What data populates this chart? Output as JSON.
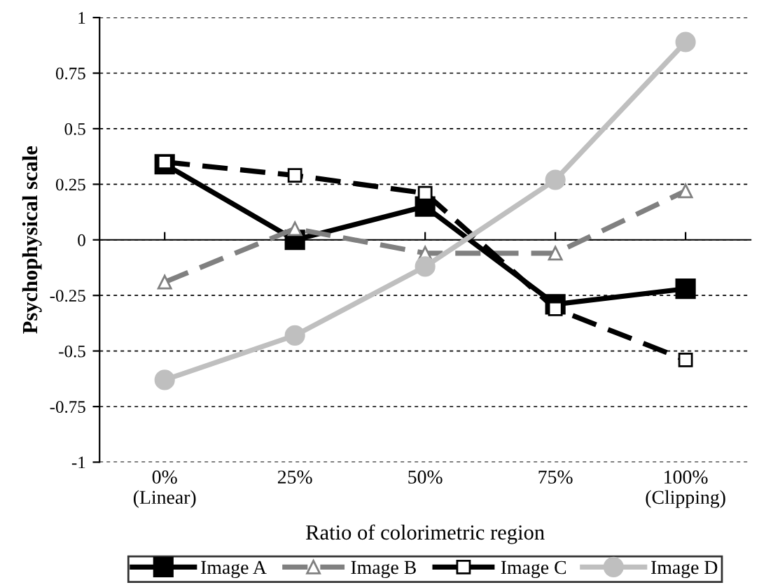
{
  "chart_data": {
    "type": "line",
    "xlabel": "Ratio of colorimetric region",
    "ylabel": "Psychophysical scale",
    "categories": [
      "0%\n(Linear)",
      "25%",
      "50%",
      "75%",
      "100%\n(Clipping)"
    ],
    "series": [
      {
        "name": "Image A",
        "color": "#000000",
        "marker": "square",
        "line_style": "solid",
        "values": [
          0.34,
          0.0,
          0.15,
          -0.29,
          -0.22
        ]
      },
      {
        "name": "Image B",
        "color": "#808080",
        "marker": "triangle",
        "line_style": "dashed",
        "values": [
          -0.19,
          0.05,
          -0.06,
          -0.06,
          0.22
        ]
      },
      {
        "name": "Image C",
        "color": "#000000",
        "marker": "square",
        "line_style": "dashed",
        "values": [
          0.35,
          0.29,
          0.21,
          -0.31,
          -0.54
        ]
      },
      {
        "name": "Image D",
        "color": "#bfbfbf",
        "marker": "circle",
        "line_style": "solid",
        "values": [
          -0.63,
          -0.43,
          -0.12,
          0.27,
          0.89
        ]
      }
    ],
    "ylim": [
      -1,
      1
    ],
    "yticks": [
      -1,
      -0.75,
      -0.5,
      -0.25,
      0,
      0.25,
      0.5,
      0.75,
      1
    ],
    "grid": "y",
    "legend": "bottom"
  }
}
